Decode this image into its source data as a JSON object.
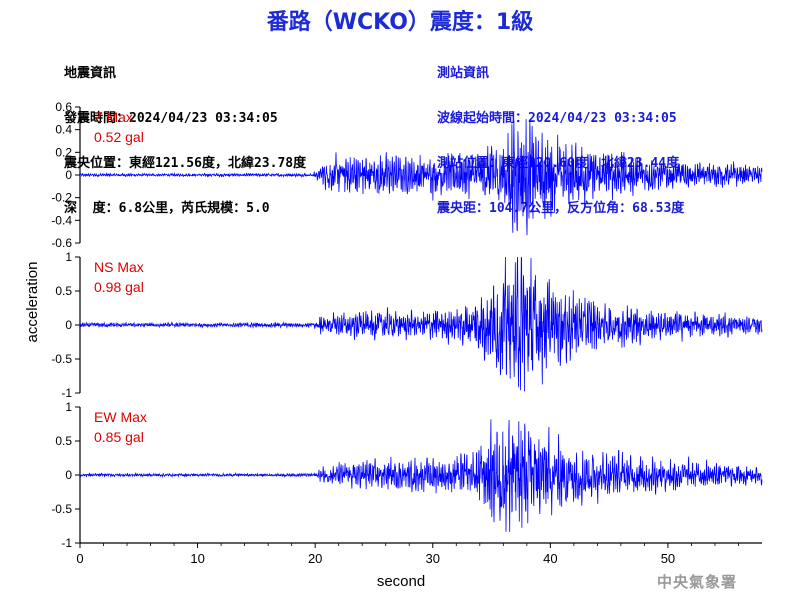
{
  "title": "番路（WCKO）震度：1級",
  "earthquake_info": {
    "heading": "地震資訊",
    "lines": [
      "發震時間：2024/04/23 03:34:05",
      "震央位置：東經121.56度，北緯23.78度",
      "深  度：6.8公里，芮氏規模：5.0"
    ]
  },
  "station_info": {
    "heading": "測站資訊",
    "lines": [
      "波線起始時間：2024/04/23 03:34:05",
      "測站位置：東經120.60度，北緯23.44度",
      "震央距：104.7公里，反方位角：68.53度"
    ]
  },
  "agency": "中央氣象署",
  "colors": {
    "title": "#1d2bd6",
    "trace": "#0000ff",
    "max_label": "#e00000",
    "station_text": "#1a1ad8"
  },
  "chart_data": [
    {
      "type": "line",
      "panel": "Z",
      "max_label": "Z Max",
      "max_value": "0.52 gal",
      "ylabel": "acceleration",
      "xlabel": "",
      "ylim": [
        -0.6,
        0.6
      ],
      "yticks": [
        -0.6,
        -0.4,
        -0.2,
        0,
        0.2,
        0.4,
        0.6
      ],
      "ytick_labels": [
        "-0.6",
        "-0.4",
        "-0.2",
        "0",
        "0.2",
        "0.4",
        "0.6"
      ],
      "xlim": [
        0,
        58
      ],
      "envelope": {
        "t": [
          0,
          19.8,
          20.5,
          22,
          25,
          28,
          30,
          33,
          35,
          36,
          37,
          38,
          39,
          41,
          43,
          45,
          50,
          55,
          58
        ],
        "a": [
          0.012,
          0.012,
          0.1,
          0.16,
          0.18,
          0.15,
          0.16,
          0.17,
          0.25,
          0.3,
          0.5,
          0.45,
          0.35,
          0.28,
          0.22,
          0.18,
          0.12,
          0.1,
          0.08
        ]
      }
    },
    {
      "type": "line",
      "panel": "NS",
      "max_label": "NS Max",
      "max_value": "0.98 gal",
      "ylabel": "acceleration",
      "xlabel": "",
      "ylim": [
        -1,
        1
      ],
      "yticks": [
        -1,
        -0.5,
        0,
        0.5,
        1
      ],
      "ytick_labels": [
        "-1",
        "-0.5",
        "0",
        "0.5",
        "1"
      ],
      "xlim": [
        0,
        58
      ],
      "envelope": {
        "t": [
          0,
          19.8,
          20.5,
          22,
          25,
          28,
          30,
          33,
          35,
          36,
          37,
          38,
          39,
          41,
          43,
          45,
          50,
          55,
          58
        ],
        "a": [
          0.03,
          0.03,
          0.12,
          0.18,
          0.2,
          0.18,
          0.2,
          0.3,
          0.55,
          0.8,
          0.9,
          0.98,
          0.75,
          0.5,
          0.4,
          0.3,
          0.2,
          0.15,
          0.12
        ]
      }
    },
    {
      "type": "line",
      "panel": "EW",
      "max_label": "EW Max",
      "max_value": "0.85 gal",
      "ylabel": "acceleration",
      "xlabel": "second",
      "ylim": [
        -1,
        1
      ],
      "yticks": [
        -1,
        -0.5,
        0,
        0.5,
        1
      ],
      "ytick_labels": [
        "-1",
        "-0.5",
        "0",
        "0.5",
        "1"
      ],
      "xlim": [
        0,
        58
      ],
      "xticks": [
        0,
        10,
        20,
        30,
        40,
        50
      ],
      "xtick_labels": [
        "0",
        "10",
        "20",
        "30",
        "40",
        "50"
      ],
      "envelope": {
        "t": [
          0,
          19.8,
          20.5,
          22,
          25,
          28,
          30,
          33,
          35,
          36,
          37,
          38,
          39,
          41,
          43,
          45,
          50,
          55,
          58
        ],
        "a": [
          0.02,
          0.02,
          0.1,
          0.15,
          0.2,
          0.2,
          0.22,
          0.3,
          0.6,
          0.75,
          0.85,
          0.7,
          0.6,
          0.45,
          0.35,
          0.3,
          0.22,
          0.15,
          0.12
        ]
      }
    }
  ]
}
